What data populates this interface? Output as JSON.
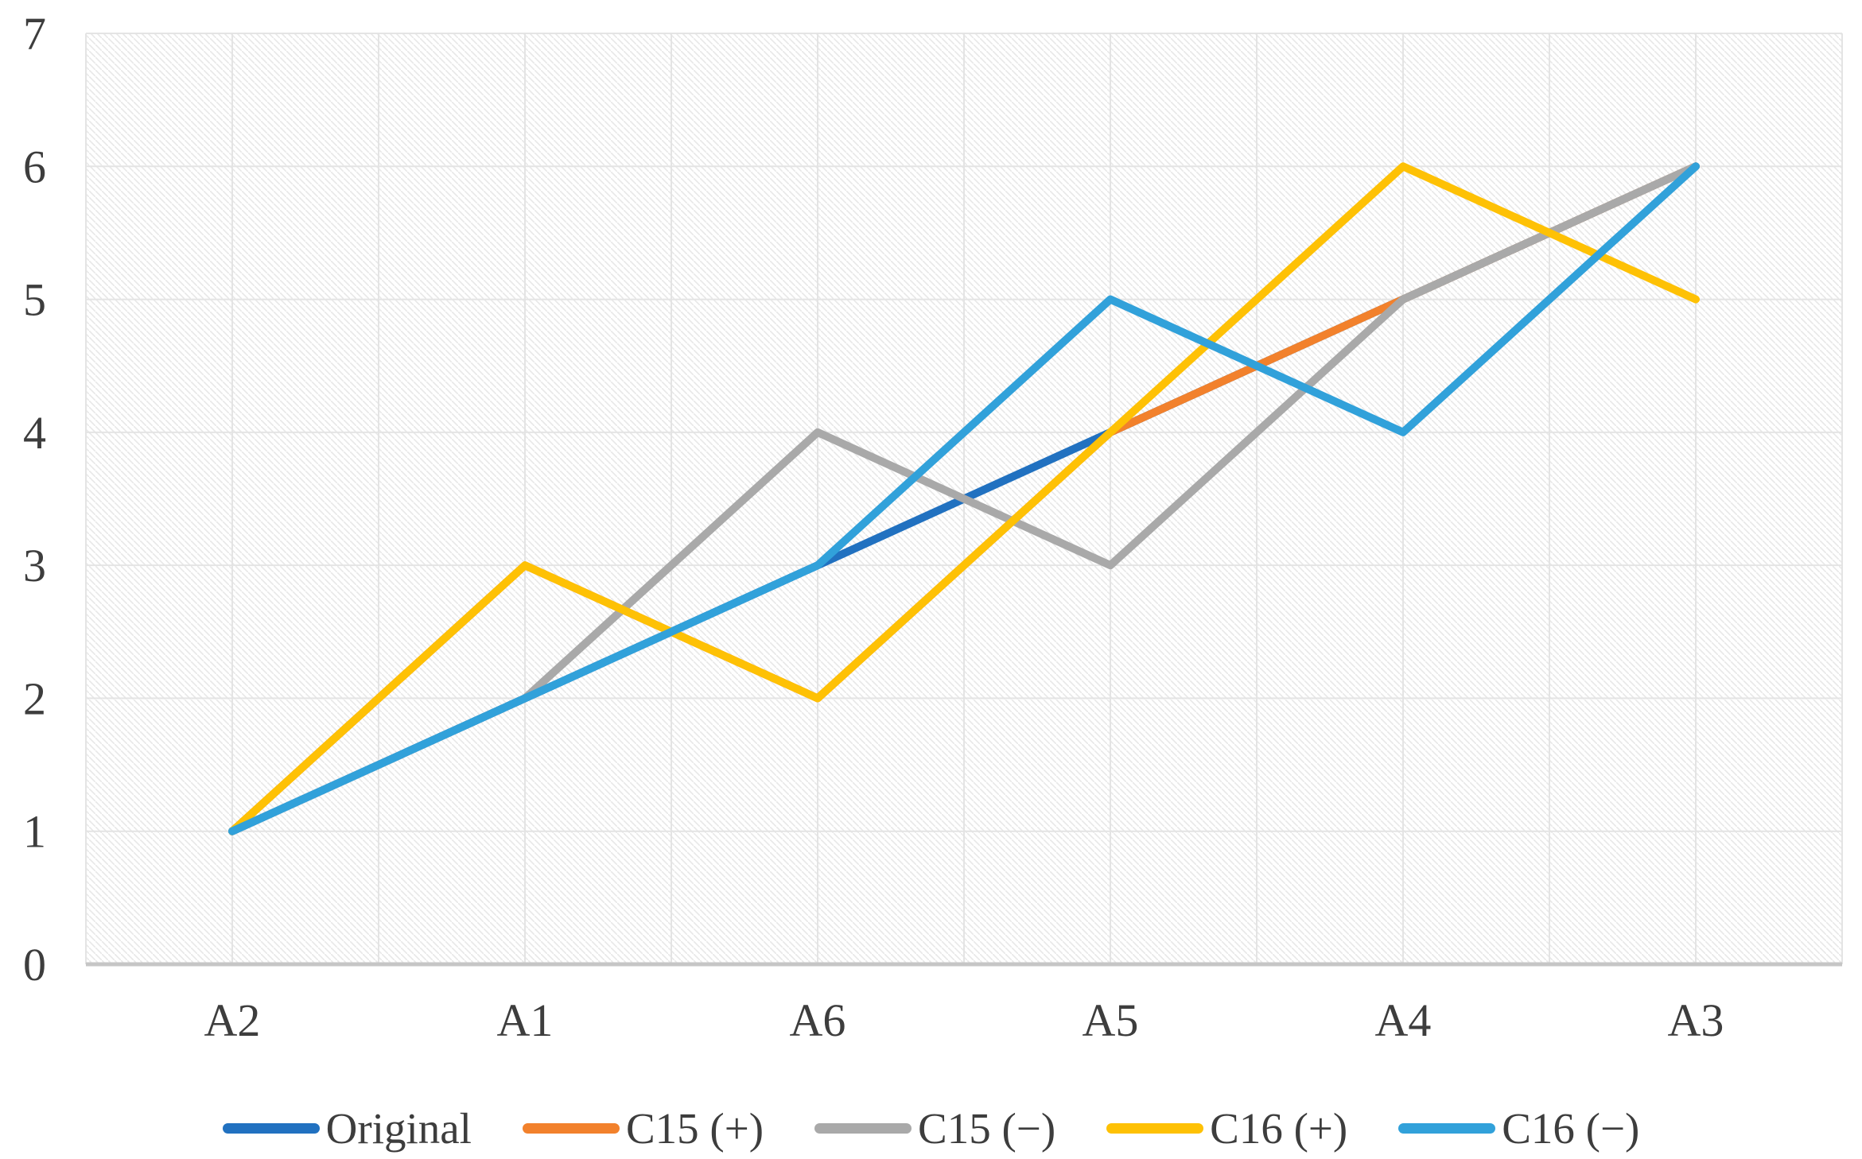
{
  "chart_data": {
    "type": "line",
    "categories": [
      "A2",
      "A1",
      "A6",
      "A5",
      "A4",
      "A3"
    ],
    "series": [
      {
        "name": "Original",
        "color": "#2171c0",
        "values": [
          1,
          2,
          3,
          4,
          5,
          6
        ]
      },
      {
        "name": "C15 (+)",
        "color": "#f2812c",
        "values": [
          1,
          3,
          2,
          4,
          5,
          6
        ]
      },
      {
        "name": "C15 (−)",
        "color": "#a9a9a9",
        "values": [
          1,
          2,
          4,
          3,
          5,
          6
        ]
      },
      {
        "name": "C16 (+)",
        "color": "#fec105",
        "values": [
          1,
          3,
          2,
          4,
          6,
          5
        ]
      },
      {
        "name": "C16 (−)",
        "color": "#31a1da",
        "values": [
          1,
          2,
          3,
          5,
          4,
          6
        ]
      }
    ],
    "ylim": [
      0,
      7
    ],
    "yticks": [
      0,
      1,
      2,
      3,
      4,
      5,
      6,
      7
    ],
    "grid": true,
    "legend_position": "bottom",
    "plot_background": "light-downward-diagonal-hatch",
    "colors": {
      "gridline": "#e4e4e4",
      "axis_line": "#c6c6c6",
      "hatch_line": "#e8e8e8",
      "text": "#3d3d3d"
    }
  }
}
